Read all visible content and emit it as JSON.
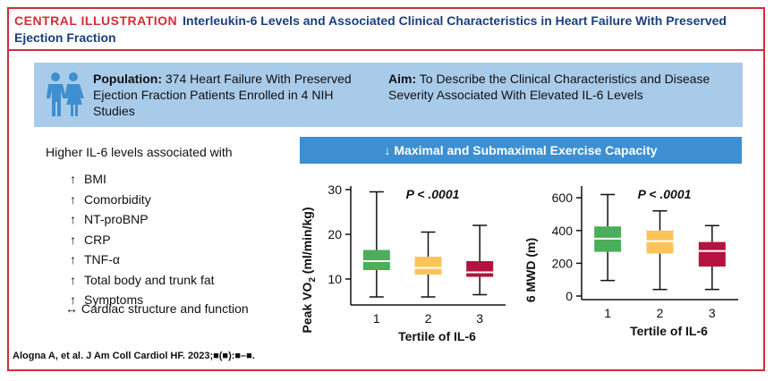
{
  "header": {
    "label": "CENTRAL ILLUSTRATION",
    "title": "Interleukin-6 Levels and Associated Clinical Characteristics in Heart Failure With Preserved Ejection Fraction"
  },
  "population": {
    "label": "Population:",
    "text": "374 Heart Failure With Preserved Ejection Fraction Patients Enrolled in 4 NIH Studies"
  },
  "aim": {
    "label": "Aim:",
    "text": "To Describe the Clinical Characteristics and Disease Severity Associated With Elevated IL-6 Levels"
  },
  "associations": {
    "header": "Higher IL-6 levels associated with",
    "items": [
      {
        "arrow": "↑",
        "label": "BMI"
      },
      {
        "arrow": "↑",
        "label": "Comorbidity"
      },
      {
        "arrow": "↑",
        "label": "NT-proBNP"
      },
      {
        "arrow": "↑",
        "label": "CRP"
      },
      {
        "arrow": "↑",
        "label": "TNF-α"
      },
      {
        "arrow": "↑",
        "label": "Total body and trunk fat"
      },
      {
        "arrow": "↑",
        "label": "Symptoms"
      }
    ],
    "last": {
      "arrow": "↔",
      "label": "Cardiac structure and function"
    }
  },
  "exercise_banner": "↓ Maximal and Submaximal Exercise Capacity",
  "citation": "Alogna A, et al. J Am Coll Cardiol HF. 2023;■(■):■–■.",
  "colors": {
    "tertile1": "#4cad5a",
    "tertile2": "#fbc45a",
    "tertile3": "#b5123f"
  },
  "chart_data": [
    {
      "type": "box",
      "xlabel": "Tertile of IL-6",
      "ylabel": "Peak VO2 (ml/min/kg)",
      "annotation": "P < .0001",
      "categories": [
        "1",
        "2",
        "3"
      ],
      "ylim": [
        5,
        30
      ],
      "yticks": [
        10,
        20,
        30
      ],
      "boxes": [
        {
          "min": 6,
          "q1": 12,
          "median": 14,
          "q3": 16.5,
          "max": 29.5
        },
        {
          "min": 6,
          "q1": 11,
          "median": 12.5,
          "q3": 15,
          "max": 20.5
        },
        {
          "min": 6.5,
          "q1": 10.5,
          "median": 11.5,
          "q3": 14,
          "max": 22
        }
      ]
    },
    {
      "type": "box",
      "xlabel": "Tertile of IL-6",
      "ylabel": "6 MWD (m)",
      "annotation": "P < .0001",
      "categories": [
        "1",
        "2",
        "3"
      ],
      "ylim": [
        0,
        650
      ],
      "yticks": [
        0,
        200,
        400,
        600
      ],
      "boxes": [
        {
          "min": 95,
          "q1": 270,
          "median": 350,
          "q3": 425,
          "max": 620
        },
        {
          "min": 40,
          "q1": 260,
          "median": 335,
          "q3": 400,
          "max": 520
        },
        {
          "min": 40,
          "q1": 180,
          "median": 275,
          "q3": 330,
          "max": 430
        }
      ]
    }
  ]
}
